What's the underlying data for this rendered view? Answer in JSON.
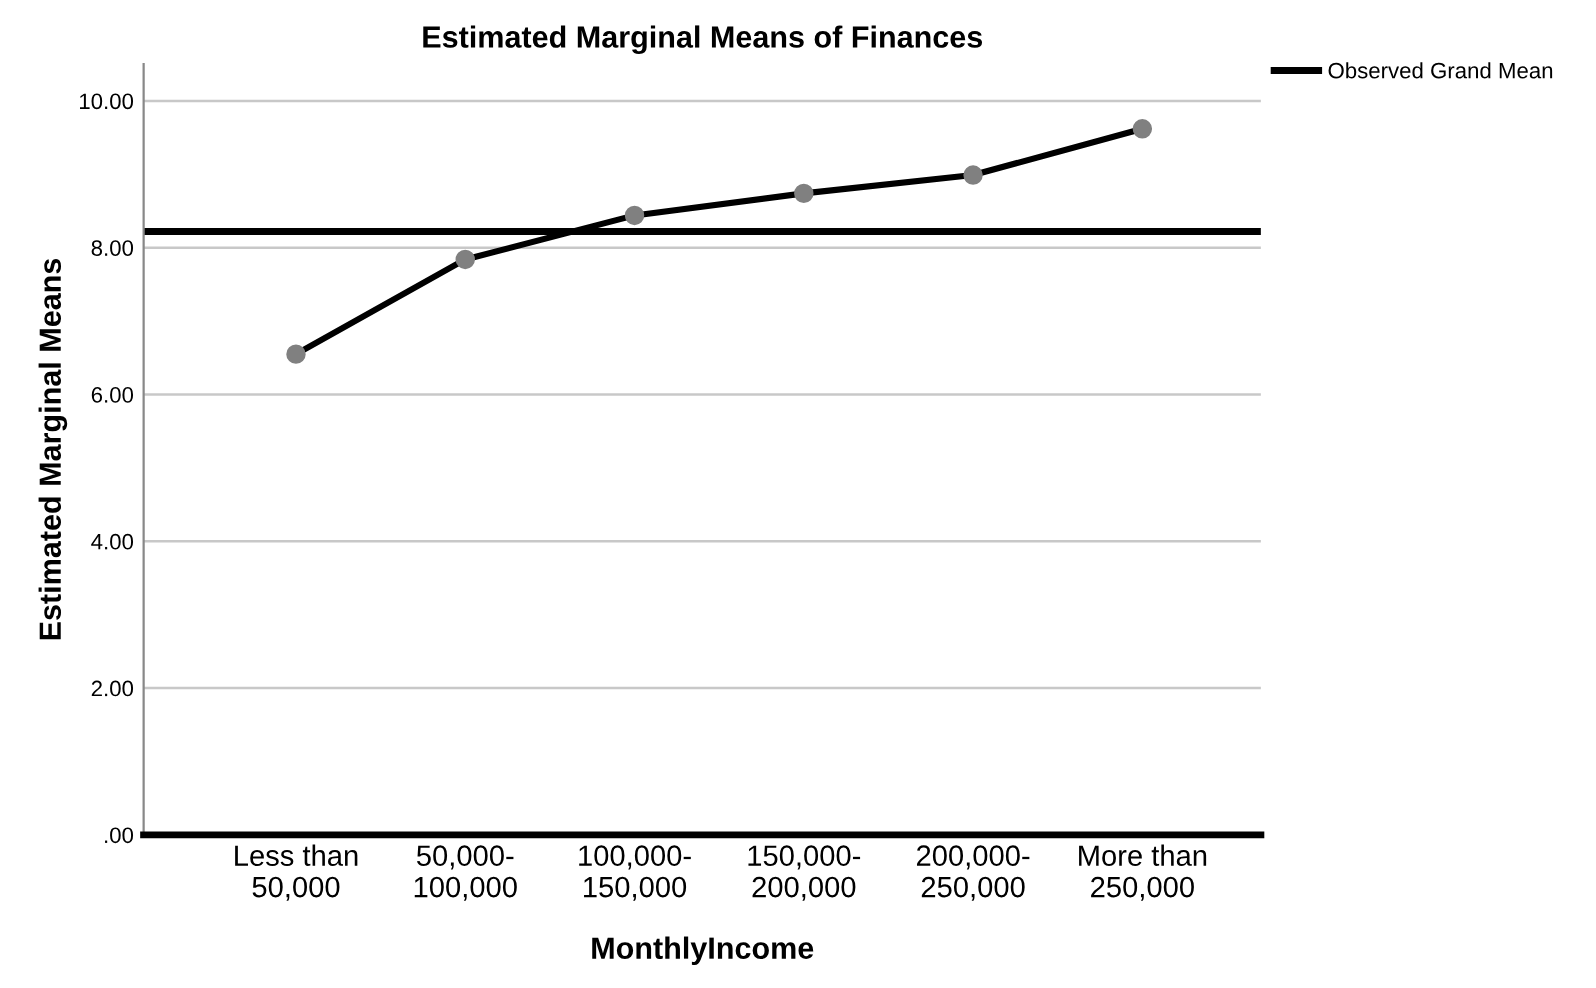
{
  "chart_data": {
    "type": "line",
    "title": "Estimated Marginal Means of Finances",
    "xlabel": "MonthlyIncome",
    "ylabel": "Estimated Marginal Means",
    "categories": [
      "Less than\n50,000",
      "50,000-\n100,000",
      "100,000-\n150,000",
      "150,000-\n200,000",
      "200,000-\n250,000",
      "More than\n250,000"
    ],
    "series": [
      {
        "color": "#000000",
        "values": [
          6.55,
          7.84,
          8.44,
          8.74,
          8.99,
          9.62
        ]
      }
    ],
    "marker": "circle",
    "line_style": "solid",
    "ylim": [
      0,
      10.5
    ],
    "yticks": [
      {
        "value": 0,
        "label": ".00"
      },
      {
        "value": 2,
        "label": "2.00"
      },
      {
        "value": 4,
        "label": "4.00"
      },
      {
        "value": 6,
        "label": "6.00"
      },
      {
        "value": 8,
        "label": "8.00"
      },
      {
        "value": 10,
        "label": "10.00"
      }
    ],
    "grid": "y",
    "legend": "top right",
    "ref_lines": [
      {
        "axis": "y",
        "value": 8.22,
        "label": "Observed Grand Mean",
        "color": "#000000",
        "line_style": "solid"
      }
    ]
  }
}
